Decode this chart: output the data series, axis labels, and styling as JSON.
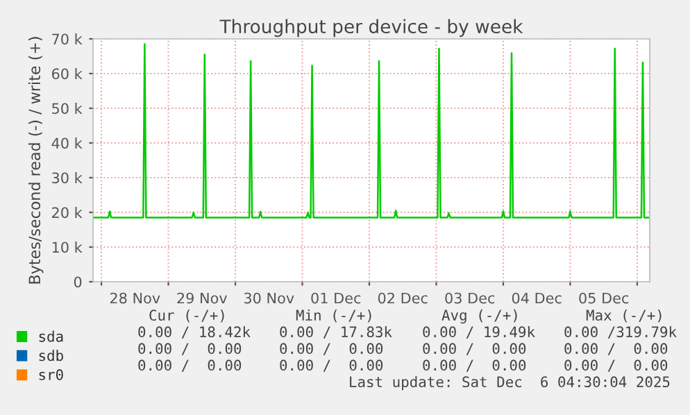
{
  "chart_data": {
    "type": "line",
    "title": "Throughput per device - by week",
    "ylabel": "Bytes/second read (-) / write (+)",
    "xlim": [
      "2025-11-27T21:00",
      "2025-12-06T04:30"
    ],
    "xticks": [
      {
        "value": "2025-11-28T00:00",
        "label": null
      },
      {
        "value": "2025-11-28T12:00",
        "label": "28 Nov"
      },
      {
        "value": "2025-11-29T00:00",
        "label": null
      },
      {
        "value": "2025-11-29T12:00",
        "label": "29 Nov"
      },
      {
        "value": "2025-11-30T00:00",
        "label": null
      },
      {
        "value": "2025-11-30T12:00",
        "label": "30 Nov"
      },
      {
        "value": "2025-12-01T00:00",
        "label": null
      },
      {
        "value": "2025-12-01T12:00",
        "label": "01 Dec"
      },
      {
        "value": "2025-12-02T00:00",
        "label": null
      },
      {
        "value": "2025-12-02T12:00",
        "label": "02 Dec"
      },
      {
        "value": "2025-12-03T00:00",
        "label": null
      },
      {
        "value": "2025-12-03T12:00",
        "label": "03 Dec"
      },
      {
        "value": "2025-12-04T00:00",
        "label": null
      },
      {
        "value": "2025-12-04T12:00",
        "label": "04 Dec"
      },
      {
        "value": "2025-12-05T00:00",
        "label": null
      },
      {
        "value": "2025-12-05T12:00",
        "label": "05 Dec"
      },
      {
        "value": "2025-12-06T00:00",
        "label": null
      }
    ],
    "ylim": [
      0,
      70000
    ],
    "yticks": [
      0,
      {
        "value": 10000,
        "label": "10 k"
      },
      {
        "value": 20000,
        "label": "20 k"
      },
      {
        "value": 30000,
        "label": "30 k"
      },
      {
        "value": 40000,
        "label": "40 k"
      },
      {
        "value": 50000,
        "label": "50 k"
      },
      {
        "value": 60000,
        "label": "60 k"
      },
      {
        "value": 70000,
        "label": "70 k"
      }
    ],
    "grid": true,
    "legend": "bottom left",
    "marker": "none",
    "line_style": "solid",
    "series": [
      {
        "name": "sda",
        "color": "#00cc00",
        "x": [
          "2025-11-27T21:00",
          "2025-11-28T02:30",
          "2025-11-28T03:00",
          "2025-11-28T03:30",
          "2025-11-28T15:00",
          "2025-11-28T15:30",
          "2025-11-28T16:00",
          "2025-11-29T08:30",
          "2025-11-29T09:00",
          "2025-11-29T09:30",
          "2025-11-29T12:30",
          "2025-11-29T13:00",
          "2025-11-29T13:30",
          "2025-11-30T05:00",
          "2025-11-30T05:30",
          "2025-11-30T06:00",
          "2025-11-30T08:30",
          "2025-11-30T09:00",
          "2025-11-30T09:30",
          "2025-12-01T01:30",
          "2025-12-01T02:00",
          "2025-12-01T02:30",
          "2025-12-01T03:00",
          "2025-12-01T03:30",
          "2025-12-01T04:00",
          "2025-12-02T03:00",
          "2025-12-02T03:30",
          "2025-12-02T04:00",
          "2025-12-02T09:00",
          "2025-12-02T09:30",
          "2025-12-02T10:00",
          "2025-12-03T00:30",
          "2025-12-03T01:00",
          "2025-12-03T01:30",
          "2025-12-03T04:00",
          "2025-12-03T04:30",
          "2025-12-03T05:00",
          "2025-12-03T23:30",
          "2025-12-04T00:00",
          "2025-12-04T00:30",
          "2025-12-04T02:30",
          "2025-12-04T03:00",
          "2025-12-04T03:30",
          "2025-12-04T23:30",
          "2025-12-05T00:00",
          "2025-12-05T00:30",
          "2025-12-05T15:30",
          "2025-12-05T16:00",
          "2025-12-05T16:30",
          "2025-12-06T01:30",
          "2025-12-06T02:00",
          "2025-12-06T02:30",
          "2025-12-06T04:00"
        ],
        "values": [
          18500,
          18500,
          20300,
          18500,
          18500,
          68500,
          18500,
          18500,
          20000,
          18500,
          18500,
          65500,
          18500,
          18500,
          63600,
          18500,
          18500,
          20200,
          18500,
          18500,
          20000,
          18500,
          18500,
          62300,
          18500,
          18500,
          63600,
          18500,
          18500,
          20500,
          18500,
          18500,
          67200,
          18500,
          18500,
          19800,
          18500,
          18500,
          20300,
          18500,
          18500,
          65900,
          18500,
          18500,
          20300,
          18500,
          18500,
          67200,
          18500,
          18500,
          63200,
          18500,
          18500
        ]
      },
      {
        "name": "sdb",
        "color": "#0066b3"
      },
      {
        "name": "sr0",
        "color": "#ff8000"
      }
    ],
    "annotations": [
      "Cur (-/+)",
      "Min (-/+)",
      "Avg (-/+)",
      "Max (-/+)",
      "0.00 / 18.42k",
      "0.00 / 17.83k",
      "0.00 / 19.49k",
      "0.00 /319.79k",
      "0.00 /  0.00",
      "0.00 /  0.00",
      "0.00 /  0.00",
      "0.00 /  0.00",
      "0.00 /  0.00",
      "0.00 /  0.00",
      "0.00 /  0.00",
      "0.00 /  0.00",
      "Last update: Sat Dec  6 04:30:04 2025"
    ]
  }
}
